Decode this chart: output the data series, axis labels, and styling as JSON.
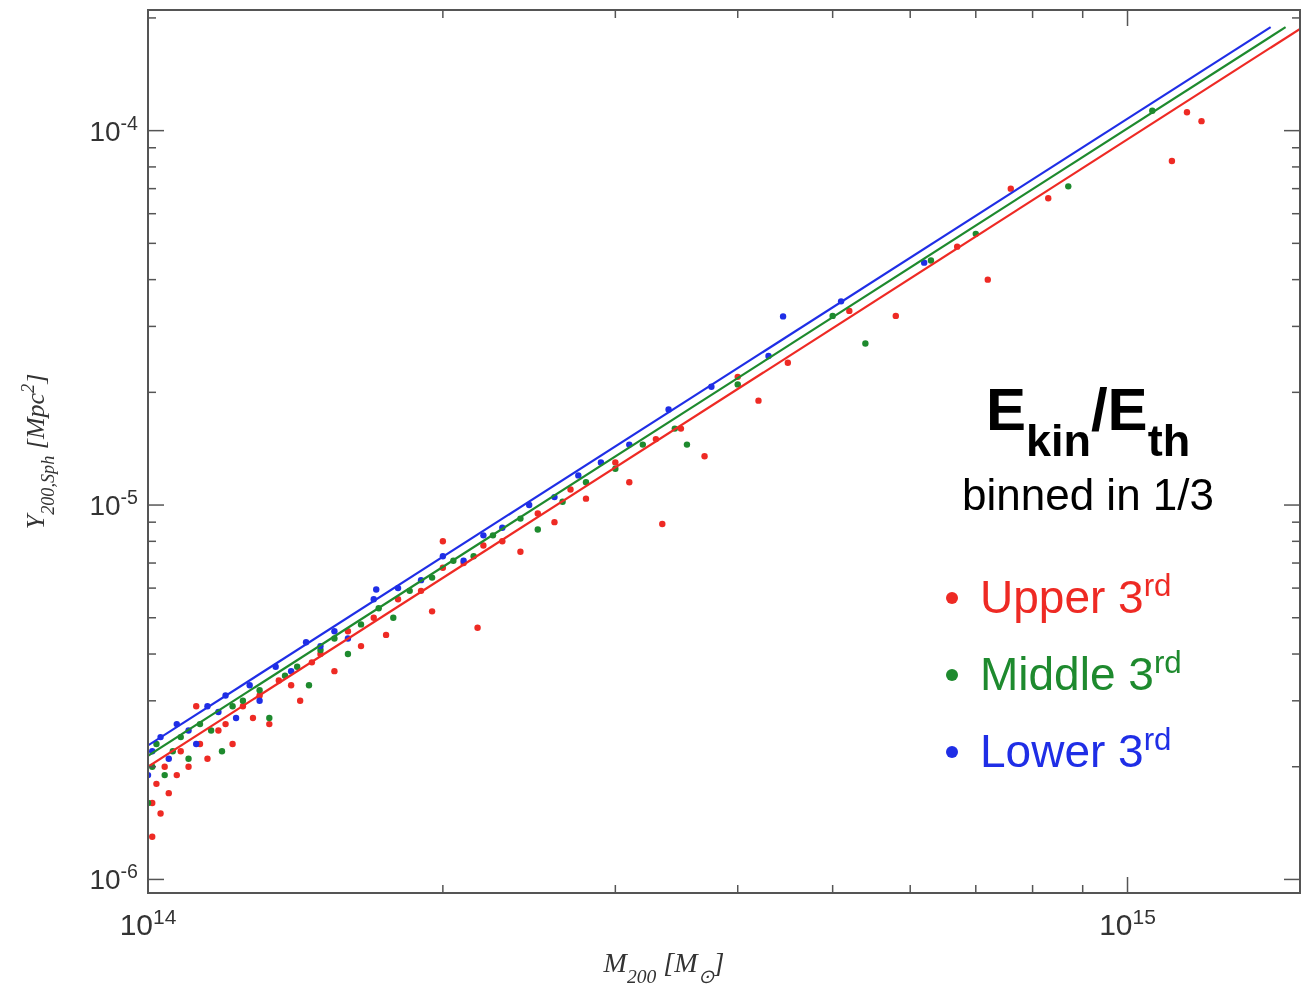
{
  "chart_data": {
    "type": "scatter",
    "xlabel": "M$_{200}$ [M$_{⊙}$]",
    "ylabel": "Y$_{200,Sph}$ [Mpc$^{2}$]",
    "log": "xy",
    "legend": "right",
    "legend_title": "E$_{kin}$/E$_{th}$",
    "annotations": [
      "binned in 1/3"
    ],
    "marker": "circle",
    "xlim": [
      100000000000000.0,
      1500000000000000.0
    ],
    "ylim": [
      9.2e-07,
      0.00021
    ],
    "xticks": [
      {
        "value": 100000000000000.0,
        "label": "10$^{14}$"
      },
      {
        "value": 200000000000000.0,
        "label": null
      },
      {
        "value": 300000000000000.0,
        "label": null
      },
      {
        "value": 400000000000000.0,
        "label": null
      },
      {
        "value": 500000000000000.0,
        "label": null
      },
      {
        "value": 600000000000000.0,
        "label": null
      },
      {
        "value": 700000000000000.0,
        "label": null
      },
      {
        "value": 800000000000000.0,
        "label": null
      },
      {
        "value": 900000000000000.0,
        "label": null
      },
      {
        "value": 1000000000000000.0,
        "label": "10$^{15}$"
      }
    ],
    "yticks": [
      {
        "value": 1e-06,
        "label": "10$^{-6}$"
      },
      {
        "value": 2e-06,
        "label": null
      },
      {
        "value": 3e-06,
        "label": null
      },
      {
        "value": 4e-06,
        "label": null
      },
      {
        "value": 5e-06,
        "label": null
      },
      {
        "value": 6e-06,
        "label": null
      },
      {
        "value": 7e-06,
        "label": null
      },
      {
        "value": 8e-06,
        "label": null
      },
      {
        "value": 9e-06,
        "label": null
      },
      {
        "value": 1e-05,
        "label": "10$^{-5}$"
      },
      {
        "value": 2e-05,
        "label": null
      },
      {
        "value": 3e-05,
        "label": null
      },
      {
        "value": 4e-05,
        "label": null
      },
      {
        "value": 5e-05,
        "label": null
      },
      {
        "value": 6e-05,
        "label": null
      },
      {
        "value": 7e-05,
        "label": null
      },
      {
        "value": 8e-05,
        "label": null
      },
      {
        "value": 9e-05,
        "label": null
      },
      {
        "value": 0.0001,
        "label": "10$^{-4}$"
      },
      {
        "value": 0.0002,
        "label": null
      }
    ],
    "series": [
      {
        "name": "Upper 3$^{rd}$",
        "color": "#ee2a24",
        "x": [
          101000000000000.0,
          101000000000000.0,
          102000000000000.0,
          103000000000000.0,
          104000000000000.0,
          105000000000000.0,
          107000000000000.0,
          108000000000000.0,
          110000000000000.0,
          112000000000000.0,
          113000000000000.0,
          115000000000000.0,
          118000000000000.0,
          120000000000000.0,
          122000000000000.0,
          125000000000000.0,
          128000000000000.0,
          130000000000000.0,
          133000000000000.0,
          136000000000000.0,
          140000000000000.0,
          143000000000000.0,
          147000000000000.0,
          150000000000000.0,
          155000000000000.0,
          160000000000000.0,
          165000000000000.0,
          170000000000000.0,
          175000000000000.0,
          180000000000000.0,
          190000000000000.0,
          195000000000000.0,
          200000000000000.0,
          200000000000000.0,
          210000000000000.0,
          217000000000000.0,
          220000000000000.0,
          230000000000000.0,
          240000000000000.0,
          250000000000000.0,
          260000000000000.0,
          270000000000000.0,
          280000000000000.0,
          300000000000000.0,
          310000000000000.0,
          330000000000000.0,
          335000000000000.0,
          350000000000000.0,
          370000000000000.0,
          400000000000000.0,
          420000000000000.0,
          450000000000000.0,
          520000000000000.0,
          580000000000000.0,
          670000000000000.0,
          720000000000000.0,
          760000000000000.0,
          830000000000000.0,
          1110000000000000.0,
          1150000000000000.0,
          1190000000000000.0
        ],
        "values": [
          1.3e-06,
          1.6e-06,
          1.8e-06,
          1.5e-06,
          2e-06,
          1.7e-06,
          1.9e-06,
          2.2e-06,
          2e-06,
          2.9e-06,
          2.3e-06,
          2.1e-06,
          2.5e-06,
          2.6e-06,
          2.3e-06,
          2.9e-06,
          2.7e-06,
          3.1e-06,
          2.6e-06,
          3.4e-06,
          3.3e-06,
          3e-06,
          3.8e-06,
          4e-06,
          3.6e-06,
          4.6e-06,
          4.2e-06,
          5e-06,
          4.5e-06,
          5.6e-06,
          5.9e-06,
          5.2e-06,
          6.8e-06,
          8e-06,
          7e-06,
          4.7e-06,
          7.8e-06,
          8e-06,
          7.5e-06,
          9.5e-06,
          9e-06,
          1.1e-05,
          1.04e-05,
          1.3e-05,
          1.15e-05,
          1.5e-05,
          8.9e-06,
          1.6e-05,
          1.35e-05,
          2.2e-05,
          1.9e-05,
          2.4e-05,
          3.3e-05,
          3.2e-05,
          4.9e-05,
          4e-05,
          7e-05,
          6.6e-05,
          8.3e-05,
          0.000112,
          0.000106
        ]
      },
      {
        "name": "Middle 3$^{rd}$",
        "color": "#1e8a2e",
        "x": [
          100000000000000.0,
          101000000000000.0,
          102000000000000.0,
          104000000000000.0,
          106000000000000.0,
          108000000000000.0,
          110000000000000.0,
          113000000000000.0,
          116000000000000.0,
          119000000000000.0,
          122000000000000.0,
          125000000000000.0,
          130000000000000.0,
          133000000000000.0,
          138000000000000.0,
          142000000000000.0,
          146000000000000.0,
          150000000000000.0,
          155000000000000.0,
          160000000000000.0,
          165000000000000.0,
          172000000000000.0,
          178000000000000.0,
          185000000000000.0,
          195000000000000.0,
          205000000000000.0,
          215000000000000.0,
          225000000000000.0,
          240000000000000.0,
          250000000000000.0,
          265000000000000.0,
          280000000000000.0,
          300000000000000.0,
          320000000000000.0,
          345000000000000.0,
          355000000000000.0,
          400000000000000.0,
          500000000000000.0,
          540000000000000.0,
          630000000000000.0,
          700000000000000.0,
          870000000000000.0,
          1060000000000000.0
        ],
        "values": [
          1.6e-06,
          2e-06,
          2.3e-06,
          1.9e-06,
          2.2e-06,
          2.4e-06,
          2.1e-06,
          2.6e-06,
          2.5e-06,
          2.2e-06,
          2.9e-06,
          3e-06,
          3.2e-06,
          2.7e-06,
          3.5e-06,
          3.7e-06,
          3.3e-06,
          4.1e-06,
          4.4e-06,
          4e-06,
          4.8e-06,
          5.3e-06,
          5e-06,
          5.9e-06,
          6.4e-06,
          7.1e-06,
          7.3e-06,
          8.3e-06,
          9.2e-06,
          8.6e-06,
          1.02e-05,
          1.15e-05,
          1.25e-05,
          1.45e-05,
          1.6e-05,
          1.45e-05,
          2.1e-05,
          3.2e-05,
          2.7e-05,
          4.5e-05,
          5.3e-05,
          7.1e-05,
          0.000113
        ]
      },
      {
        "name": "Lower 3$^{rd}$",
        "color": "#1f2ee6",
        "x": [
          100000000000000.0,
          101000000000000.0,
          103000000000000.0,
          105000000000000.0,
          107000000000000.0,
          110000000000000.0,
          112000000000000.0,
          115000000000000.0,
          118000000000000.0,
          120000000000000.0,
          123000000000000.0,
          127000000000000.0,
          130000000000000.0,
          135000000000000.0,
          140000000000000.0,
          145000000000000.0,
          150000000000000.0,
          155000000000000.0,
          160000000000000.0,
          171000000000000.0,
          170000000000000.0,
          180000000000000.0,
          190000000000000.0,
          200000000000000.0,
          210000000000000.0,
          220000000000000.0,
          230000000000000.0,
          245000000000000.0,
          260000000000000.0,
          275000000000000.0,
          290000000000000.0,
          310000000000000.0,
          340000000000000.0,
          376000000000000.0,
          430000000000000.0,
          445000000000000.0,
          510000000000000.0,
          620000000000000.0
        ],
        "values": [
          1.9e-06,
          2.2e-06,
          2.4e-06,
          2.1e-06,
          2.6e-06,
          2.5e-06,
          2.3e-06,
          2.9e-06,
          2.8e-06,
          3.1e-06,
          2.7e-06,
          3.3e-06,
          3e-06,
          3.7e-06,
          3.6e-06,
          4.3e-06,
          4.2e-06,
          4.6e-06,
          4.4e-06,
          5.95e-06,
          5.6e-06,
          6e-06,
          6.3e-06,
          7.3e-06,
          7.1e-06,
          8.3e-06,
          8.7e-06,
          1e-05,
          1.05e-05,
          1.2e-05,
          1.3e-05,
          1.45e-05,
          1.8e-05,
          2.07e-05,
          2.5e-05,
          3.19e-05,
          3.5e-05,
          4.44e-05
        ]
      },
      {
        "type": "line",
        "marker": "none",
        "color": "#ee2a24",
        "x": [
          100000000000000.0,
          1500000000000000.0
        ],
        "values": [
          2e-06,
          0.000187
        ]
      },
      {
        "type": "line",
        "marker": "none",
        "color": "#1e8a2e",
        "x": [
          100000000000000.0,
          1450000000000000.0
        ],
        "values": [
          2.14e-06,
          0.000189
        ]
      },
      {
        "type": "line",
        "marker": "none",
        "color": "#1f2ee6",
        "x": [
          100000000000000.0,
          1400000000000000.0
        ],
        "values": [
          2.28e-06,
          0.000189
        ]
      }
    ]
  }
}
